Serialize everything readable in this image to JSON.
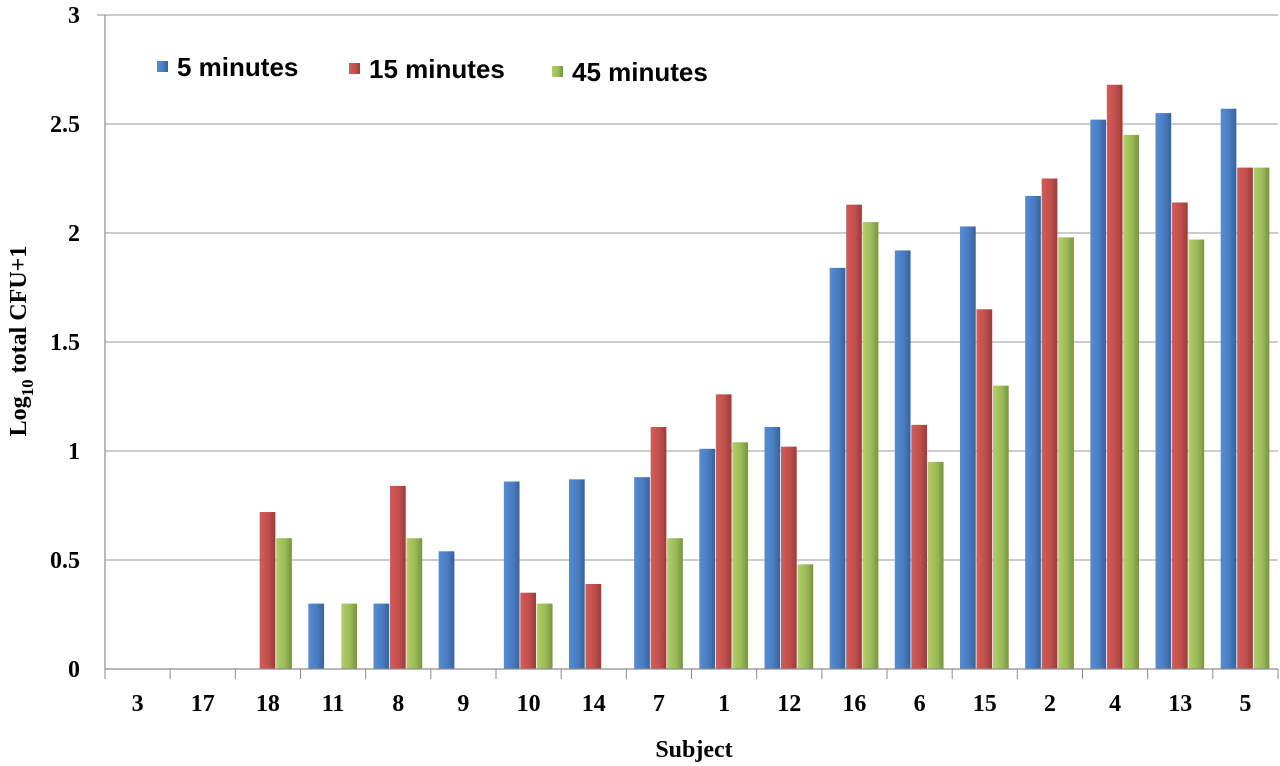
{
  "chart_data": {
    "type": "bar",
    "title": "",
    "xlabel": "Subject",
    "ylabel": "Log10 total CFU+1",
    "ylabel_parts": {
      "main": "Log",
      "sub": "10",
      "rest": " total CFU+1"
    },
    "ylim": [
      0,
      3
    ],
    "yticks": [
      "0",
      "0.5",
      "1",
      "1.5",
      "2",
      "2.5",
      "3"
    ],
    "grid": true,
    "legend_position": "top-left",
    "categories": [
      "3",
      "17",
      "18",
      "11",
      "8",
      "9",
      "10",
      "14",
      "7",
      "1",
      "12",
      "16",
      "6",
      "15",
      "2",
      "4",
      "13",
      "5"
    ],
    "series": [
      {
        "name": "5 minutes",
        "color": "#4a7dc0",
        "values": [
          0,
          0,
          0,
          0.3,
          0.3,
          0.54,
          0.86,
          0.87,
          0.88,
          1.01,
          1.11,
          1.84,
          1.92,
          2.03,
          2.17,
          2.52,
          2.55,
          2.57
        ]
      },
      {
        "name": "15 minutes",
        "color": "#c0504d",
        "values": [
          0,
          0,
          0.72,
          0,
          0.84,
          0,
          0.35,
          0.39,
          1.11,
          1.26,
          1.02,
          2.13,
          1.12,
          1.65,
          2.25,
          2.68,
          2.14,
          2.3
        ]
      },
      {
        "name": "45 minutes",
        "color": "#9bbb59",
        "values": [
          0,
          0,
          0.6,
          0.3,
          0.6,
          0,
          0.3,
          0,
          0.6,
          1.04,
          0.48,
          2.05,
          0.95,
          1.3,
          1.98,
          2.45,
          1.97,
          2.3
        ]
      }
    ]
  }
}
